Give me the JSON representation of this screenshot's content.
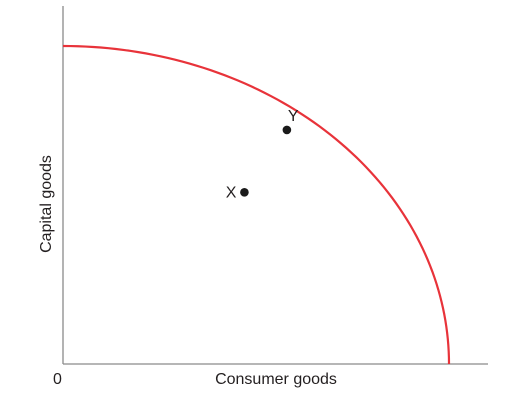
{
  "chart_data": {
    "type": "line",
    "title": "",
    "xlabel": "Consumer goods",
    "ylabel": "Capital goods",
    "origin_label": "0",
    "xlim": [
      0,
      10
    ],
    "ylim": [
      0,
      10
    ],
    "grid": false,
    "legend": "none",
    "series": [
      {
        "color": "#e8333a",
        "x": [
          0,
          2,
          4,
          5.8,
          7,
          8,
          8.8,
          9.4,
          10
        ],
        "y": [
          10,
          9.66,
          8.66,
          7.36,
          6.04,
          4.76,
          3.39,
          2.06,
          0
        ]
      }
    ],
    "points": [
      {
        "label": "X",
        "x": 4.7,
        "y": 5.4
      },
      {
        "label": "Y",
        "x": 5.8,
        "y": 7.36
      }
    ]
  }
}
